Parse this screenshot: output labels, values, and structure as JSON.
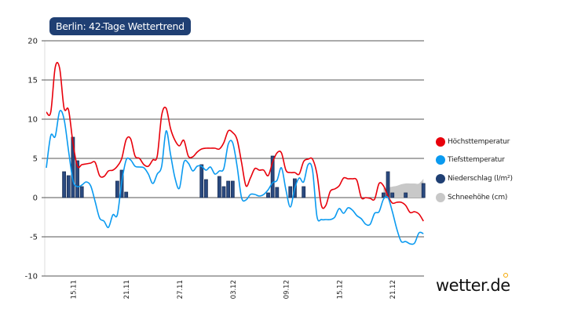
{
  "chart_data": {
    "type": "line",
    "title": "Berlin: 42-Tage Wettertrend",
    "xlabel": "",
    "ylabel": "",
    "ylim": [
      -10,
      20
    ],
    "yticks": [
      "20",
      "15",
      "10",
      "5",
      "0",
      "-5",
      "-10"
    ],
    "xticks": [
      "15.11",
      "21.11",
      "27.11",
      "03.12",
      "09.12",
      "15.12",
      "21.12"
    ],
    "grid": true,
    "legend_position": "right",
    "x": [
      "12.11 00:00",
      "12.11 12:00",
      "13.11 00:00",
      "13.11 12:00",
      "14.11 00:00",
      "14.11 12:00",
      "15.11 00:00",
      "15.11 12:00",
      "16.11 00:00",
      "16.11 12:00",
      "17.11 00:00",
      "17.11 12:00",
      "18.11 00:00",
      "18.11 12:00",
      "19.11 00:00",
      "19.11 12:00",
      "20.11 00:00",
      "20.11 12:00",
      "21.11 00:00",
      "21.11 12:00",
      "22.11 00:00",
      "22.11 12:00",
      "23.11 00:00",
      "23.11 12:00",
      "24.11 00:00",
      "24.11 12:00",
      "25.11 00:00",
      "25.11 12:00",
      "26.11 00:00",
      "26.11 12:00",
      "27.11 00:00",
      "27.11 12:00",
      "28.11 00:00",
      "28.11 12:00",
      "29.11 00:00",
      "29.11 12:00",
      "30.11 00:00",
      "30.11 12:00",
      "01.12 00:00",
      "01.12 12:00",
      "02.12 00:00",
      "02.12 12:00",
      "03.12 00:00",
      "03.12 12:00",
      "04.12 00:00",
      "04.12 12:00",
      "05.12 00:00",
      "05.12 12:00",
      "06.12 00:00",
      "06.12 12:00",
      "07.12 00:00",
      "07.12 12:00",
      "08.12 00:00",
      "08.12 12:00",
      "09.12 00:00",
      "09.12 12:00",
      "10.12 00:00",
      "10.12 12:00",
      "11.12 00:00",
      "11.12 12:00",
      "12.12 00:00",
      "12.12 12:00",
      "13.12 00:00",
      "13.12 12:00",
      "14.12 00:00",
      "14.12 12:00",
      "15.12 00:00",
      "15.12 12:00",
      "16.12 00:00",
      "16.12 12:00",
      "17.12 00:00",
      "17.12 12:00",
      "18.12 00:00",
      "18.12 12:00",
      "19.12 00:00",
      "19.12 12:00",
      "20.12 00:00",
      "20.12 12:00",
      "21.12 00:00",
      "21.12 12:00",
      "22.12 00:00",
      "22.12 12:00",
      "23.12 00:00",
      "23.12 12:00",
      "24.12 00:00",
      "24.12 12:00"
    ],
    "series": [
      {
        "name": "Höchsttemperatur",
        "kind": "line",
        "color": "#e8000b",
        "values": [
          10.9,
          10.9,
          16.6,
          16.5,
          11.4,
          11.2,
          7.0,
          4.0,
          4.2,
          4.3,
          4.4,
          4.5,
          2.8,
          2.7,
          3.4,
          3.5,
          4.0,
          5.0,
          7.4,
          7.5,
          5.3,
          5.0,
          4.2,
          4.0,
          4.8,
          5.3,
          10.5,
          11.4,
          8.8,
          7.3,
          6.6,
          7.3,
          5.3,
          5.2,
          5.8,
          6.2,
          6.3,
          6.3,
          6.3,
          6.2,
          7.0,
          8.5,
          8.3,
          7.4,
          4.5,
          1.5,
          2.5,
          3.7,
          3.5,
          3.5,
          2.8,
          4.5,
          5.7,
          5.7,
          3.5,
          3.2,
          3.2,
          3.0,
          4.6,
          4.9,
          4.9,
          3.0,
          -1.0,
          -1.0,
          0.8,
          1.1,
          1.5,
          2.5,
          2.4,
          2.4,
          2.2,
          0.0,
          0.0,
          -0.1,
          -0.2,
          1.8,
          1.5,
          0.2,
          -0.7,
          -0.6,
          -0.6,
          -1.0,
          -1.9,
          -1.8,
          -2.1,
          -3.0
        ]
      },
      {
        "name": "Tiefsttemperatur",
        "kind": "line",
        "color": "#0a9af0",
        "values": [
          3.8,
          7.9,
          7.8,
          11.0,
          10.0,
          6.0,
          2.2,
          1.4,
          1.6,
          2.0,
          1.5,
          -0.5,
          -2.6,
          -3.0,
          -3.8,
          -2.2,
          -2.2,
          2.0,
          4.8,
          4.8,
          4.0,
          3.9,
          3.8,
          3.0,
          1.8,
          3.0,
          4.0,
          8.5,
          5.5,
          2.5,
          1.2,
          4.5,
          4.4,
          3.4,
          4.0,
          4.0,
          3.5,
          3.9,
          3.0,
          3.4,
          3.7,
          6.8,
          7.0,
          4.0,
          0.0,
          -0.3,
          0.4,
          0.4,
          0.2,
          0.4,
          1.0,
          1.9,
          2.2,
          3.8,
          1.0,
          -1.2,
          1.2,
          2.5,
          2.0,
          4.2,
          3.5,
          -2.4,
          -2.8,
          -2.8,
          -2.8,
          -2.5,
          -1.4,
          -2.0,
          -1.3,
          -1.6,
          -2.3,
          -2.7,
          -3.4,
          -3.4,
          -2.0,
          -1.8,
          -0.2,
          0.0,
          -1.8,
          -4.0,
          -5.6,
          -5.6,
          -5.9,
          -5.8,
          -4.5,
          -4.6
        ]
      },
      {
        "name": "Niederschlag (l/m²)",
        "kind": "bar",
        "color": "#2a4a80",
        "values": [
          0,
          0,
          0,
          0,
          3.3,
          2.8,
          7.7,
          4.7,
          1.4,
          0,
          0,
          0,
          0,
          0,
          0,
          0,
          2.1,
          3.5,
          0.7,
          0,
          0,
          0,
          0,
          0,
          0,
          0,
          0,
          0,
          0,
          0,
          0,
          0,
          0,
          0,
          0,
          4.2,
          2.3,
          0,
          0,
          2.7,
          1.4,
          2.1,
          2.1,
          0,
          0,
          0,
          0,
          0,
          0,
          0,
          0.6,
          5.3,
          1.3,
          0,
          0,
          1.4,
          2.4,
          0,
          1.4,
          0,
          0,
          0,
          0,
          0,
          0,
          0,
          0,
          0,
          0,
          0,
          0,
          0,
          0,
          0,
          0,
          0,
          0.6,
          3.3,
          0.6,
          0,
          0,
          0.6,
          0,
          0,
          0,
          1.8
        ]
      },
      {
        "name": "Schneehöhe (cm)",
        "kind": "area",
        "color": "#c8c8c8",
        "values": [
          0,
          0,
          0,
          0,
          0,
          0,
          0,
          0,
          0,
          0,
          0,
          0,
          0,
          0,
          0,
          0,
          0,
          0,
          0,
          0,
          0,
          0,
          0,
          0,
          0,
          0,
          0,
          0,
          0,
          0,
          0,
          0,
          0,
          0,
          0,
          0,
          0,
          0,
          0,
          0,
          0,
          0,
          0,
          0,
          0,
          0,
          0,
          0,
          0,
          0,
          0,
          0,
          0,
          0,
          0,
          0,
          0,
          0,
          0,
          0,
          0,
          0,
          0,
          0,
          0,
          0,
          0,
          0,
          0,
          0,
          0,
          0,
          0,
          0,
          0,
          0,
          1.2,
          1.3,
          1.4,
          1.5,
          1.7,
          1.8,
          1.8,
          1.8,
          1.8,
          2.4
        ]
      }
    ]
  },
  "legend": [
    {
      "label": "Höchsttemperatur",
      "color": "#e8000b"
    },
    {
      "label": "Tiefsttemperatur",
      "color": "#0a9af0"
    },
    {
      "label": "Niederschlag (l/m²)",
      "color": "#1f3f73"
    },
    {
      "label": "Schneehöhe (cm)",
      "color": "#c8c8c8"
    }
  ],
  "logo": {
    "text": "wetter.de",
    "accent": "#f5a800"
  }
}
